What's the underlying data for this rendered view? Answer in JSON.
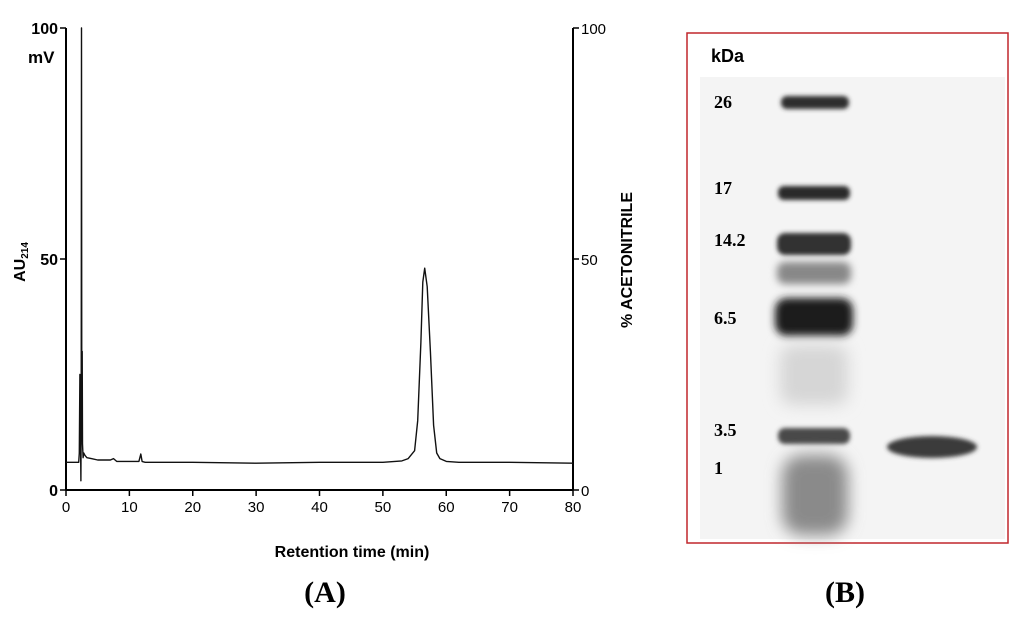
{
  "chart_data": [
    {
      "type": "line",
      "title": "",
      "xlabel": "Retention time (min)",
      "ylabel": "AU214",
      "ylabel_parts": {
        "base": "AU",
        "subscript": "214"
      },
      "y2label": "% ACETONITRILE",
      "xlim": [
        0,
        80
      ],
      "ylim": [
        0,
        100
      ],
      "y2lim": [
        0,
        100
      ],
      "x_ticks": [
        "0",
        "10",
        "20",
        "30",
        "40",
        "50",
        "60",
        "70",
        "80"
      ],
      "y_ticks": [
        "0",
        "50",
        "100"
      ],
      "y_unit_label": "mV",
      "y2_ticks": [
        "0",
        "50",
        "100"
      ],
      "grid": false,
      "series": [
        {
          "x": [
            0,
            2.0,
            2.1,
            2.2,
            2.3,
            2.35,
            2.4,
            2.45,
            2.5,
            2.55,
            2.6,
            2.7,
            2.8,
            3.0,
            3.3,
            4,
            5,
            7,
            7.5,
            8,
            11.5,
            11.8,
            12,
            12.2,
            12.5,
            15,
            20,
            30,
            40,
            50,
            53,
            54,
            55,
            55.5,
            56,
            56.3,
            56.6,
            57,
            57.5,
            58,
            58.5,
            59,
            60,
            62,
            70,
            80
          ],
          "y": [
            6,
            6,
            8,
            25,
            9,
            2,
            16,
            100,
            12,
            30,
            10,
            7,
            8,
            7.5,
            7,
            6.8,
            6.5,
            6.5,
            6.8,
            6.2,
            6.2,
            7.8,
            6.2,
            6.1,
            6,
            6,
            6,
            5.8,
            6,
            6,
            6.3,
            6.8,
            8.5,
            15,
            32,
            45,
            48,
            44,
            30,
            14,
            8,
            6.8,
            6.2,
            6,
            6,
            5.8
          ]
        }
      ]
    },
    {
      "type": "gel",
      "title": "",
      "ylabel": "kDa",
      "marker_labels": [
        "26",
        "17",
        "14.2",
        "6.5",
        "3.5",
        "1"
      ],
      "lanes": [
        "marker",
        "sample"
      ],
      "border_color": "#c0262c"
    }
  ],
  "panels": {
    "a": "(A)",
    "b": "(B)"
  }
}
